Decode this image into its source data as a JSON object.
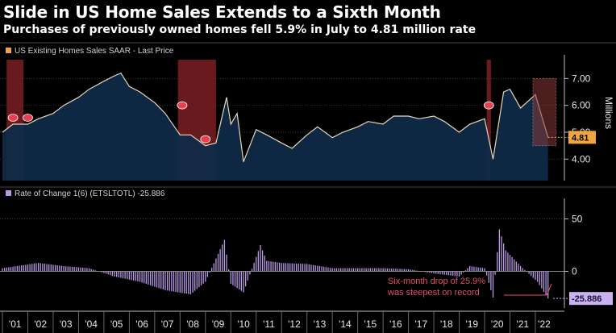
{
  "header": {
    "title": "Slide in US Home Sales Extends to a Sixth Month",
    "subtitle": "Purchases of previously owned homes fell 5.9% in July to 4.81 million rate"
  },
  "colors": {
    "background": "#000000",
    "area_fill": "#0f2a48",
    "line": "#e8d8b8",
    "recession": "#7a1e24",
    "legend_orange": "#f0a640",
    "bar_purple": "#b89ae6",
    "badge_orange": "#f0a640",
    "badge_purple": "#c8b2f0",
    "annotation_red": "#e05070"
  },
  "chart_data": [
    {
      "type": "area",
      "legend": "US Existing Homes Sales SAAR - Last Price",
      "ylabel": "Millions",
      "y_ticks": [
        "4.00",
        "5.00",
        "6.00",
        "7.00"
      ],
      "ylim": [
        3.2,
        7.7
      ],
      "grid": true,
      "last_value_label": "4.81",
      "x_points": [
        "2001-01",
        "2001-06",
        "2002-01",
        "2002-06",
        "2003-01",
        "2003-06",
        "2004-01",
        "2004-06",
        "2005-01",
        "2005-06",
        "2005-09",
        "2006-01",
        "2006-06",
        "2007-01",
        "2007-06",
        "2008-01",
        "2008-06",
        "2009-01",
        "2009-06",
        "2009-11",
        "2010-01",
        "2010-04",
        "2010-07",
        "2011-01",
        "2011-06",
        "2012-01",
        "2012-06",
        "2013-01",
        "2013-06",
        "2014-01",
        "2014-06",
        "2015-01",
        "2015-06",
        "2016-01",
        "2016-06",
        "2017-01",
        "2017-06",
        "2018-01",
        "2018-06",
        "2019-01",
        "2019-06",
        "2020-01",
        "2020-05",
        "2020-10",
        "2021-01",
        "2021-06",
        "2022-01",
        "2022-04",
        "2022-07"
      ],
      "values": [
        5.0,
        5.3,
        5.3,
        5.5,
        5.7,
        6.0,
        6.3,
        6.6,
        6.9,
        7.1,
        7.2,
        6.7,
        6.5,
        6.1,
        5.7,
        4.9,
        4.9,
        4.5,
        4.6,
        6.3,
        5.3,
        5.7,
        3.9,
        5.1,
        4.9,
        4.6,
        4.4,
        4.9,
        5.2,
        4.8,
        5.0,
        5.2,
        5.4,
        5.3,
        5.6,
        5.6,
        5.5,
        5.6,
        5.4,
        5.0,
        5.3,
        5.5,
        4.0,
        6.5,
        6.6,
        5.9,
        6.4,
        5.6,
        4.81
      ],
      "recessions": [
        [
          "2001-03",
          "2001-11"
        ],
        [
          "2007-12",
          "2009-06"
        ],
        [
          "2020-02",
          "2020-04"
        ]
      ],
      "markers": [
        "2001-06",
        "2002-01",
        "2008-02",
        "2009-01",
        "2020-03"
      ]
    },
    {
      "type": "bar",
      "legend": "Rate of Change 1(6) (ETSLTOTL) -25.886",
      "y_ticks": [
        "0",
        "50"
      ],
      "ylim": [
        -35,
        65
      ],
      "last_value_label": "-25.886",
      "x_points": [
        "2001-01",
        "2002-06",
        "2003-06",
        "2004-06",
        "2005-06",
        "2006-06",
        "2007-06",
        "2008-06",
        "2009-01",
        "2009-10",
        "2010-01",
        "2010-07",
        "2011-03",
        "2011-06",
        "2012-01",
        "2013-01",
        "2014-01",
        "2015-01",
        "2016-01",
        "2017-01",
        "2018-01",
        "2019-01",
        "2019-06",
        "2020-01",
        "2020-05",
        "2020-08",
        "2020-11",
        "2021-06",
        "2022-02",
        "2022-07"
      ],
      "values": [
        3,
        8,
        5,
        3,
        -5,
        -10,
        -18,
        -22,
        -10,
        30,
        -12,
        -20,
        25,
        10,
        8,
        7,
        3,
        3,
        3,
        2,
        -2,
        -5,
        5,
        3,
        -25,
        40,
        20,
        5,
        -10,
        -25.886
      ],
      "annotation": "Six-month drop of 25.9% was steepest on record",
      "annotation_line1": "Six-month drop of 25.9%",
      "annotation_line2": "was steepest on record"
    }
  ],
  "x_axis": {
    "years": [
      "'01",
      "'02",
      "'03",
      "'04",
      "'05",
      "'06",
      "'07",
      "'08",
      "'09",
      "'10",
      "'11",
      "'12",
      "'13",
      "'14",
      "'15",
      "'16",
      "'17",
      "'18",
      "'19",
      "'20",
      "'21",
      "'22"
    ]
  }
}
